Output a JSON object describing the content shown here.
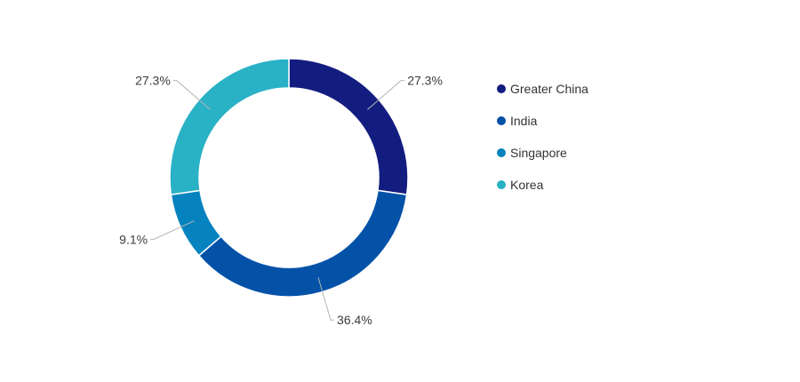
{
  "chart_data": {
    "type": "pie",
    "variant": "donut",
    "categories": [
      "Greater China",
      "India",
      "Singapore",
      "Korea"
    ],
    "values": [
      27.3,
      36.4,
      9.1,
      27.3
    ],
    "data_labels": [
      "27.3%",
      "36.4%",
      "9.1%",
      "27.3%"
    ],
    "colors": [
      "#131d80",
      "#0352a8",
      "#0683bf",
      "#29b1c6"
    ],
    "title": "",
    "legend_position": "right"
  }
}
